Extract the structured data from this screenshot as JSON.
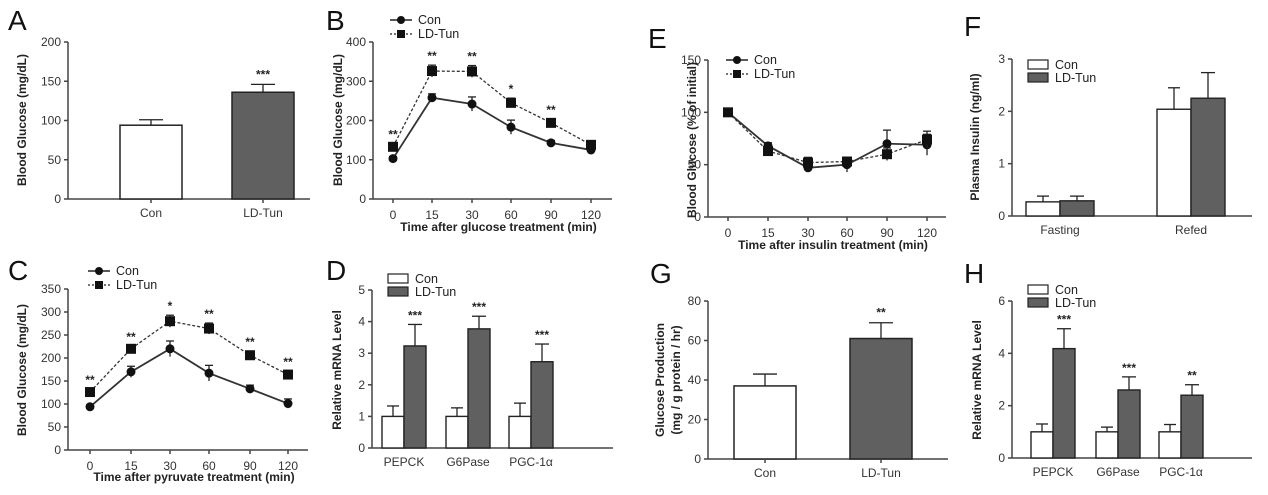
{
  "colors": {
    "con_fill": "#ffffff",
    "ldtun_fill": "#606060",
    "stroke": "#222222",
    "line": "#333333"
  },
  "chart_data": [
    {
      "panel": "A",
      "type": "bar",
      "categories": [
        "Con",
        "LD-Tun"
      ],
      "values": [
        94,
        136
      ],
      "errors": [
        7,
        10
      ],
      "significance": [
        "",
        "***"
      ],
      "ylabel": "Blood Glucose (mg/dL)",
      "xlabel": "",
      "ylim": [
        0,
        200
      ],
      "yticks": [
        0,
        50,
        100,
        150,
        200
      ]
    },
    {
      "panel": "B",
      "type": "line",
      "x": [
        "0",
        "15",
        "30",
        "60",
        "90",
        "120"
      ],
      "series": [
        {
          "name": "Con",
          "marker": "circle",
          "dash": false,
          "values": [
            103,
            258,
            242,
            183,
            143,
            125
          ],
          "errors": [
            5,
            10,
            18,
            18,
            6,
            5
          ]
        },
        {
          "name": "LD-Tun",
          "marker": "square",
          "dash": true,
          "values": [
            133,
            326,
            325,
            245,
            194,
            138
          ],
          "errors": [
            8,
            15,
            15,
            12,
            10,
            6
          ]
        }
      ],
      "significance": [
        "**",
        "**",
        "**",
        "*",
        "**",
        ""
      ],
      "legend": [
        "Con",
        "LD-Tun"
      ],
      "legend_position": "top-left",
      "ylabel": "Blood Glucose (mg/dL)",
      "xlabel": "Time after glucose treatment (min)",
      "ylim": [
        0,
        400
      ],
      "yticks": [
        0,
        100,
        200,
        300,
        400
      ]
    },
    {
      "panel": "C",
      "type": "line",
      "x": [
        "0",
        "15",
        "30",
        "60",
        "90",
        "120"
      ],
      "series": [
        {
          "name": "Con",
          "marker": "circle",
          "dash": false,
          "values": [
            94,
            170,
            220,
            167,
            133,
            101
          ],
          "errors": [
            4,
            12,
            17,
            17,
            8,
            10
          ]
        },
        {
          "name": "LD-Tun",
          "marker": "square",
          "dash": true,
          "values": [
            126,
            220,
            280,
            264,
            206,
            164
          ],
          "errors": [
            7,
            6,
            13,
            12,
            9,
            8
          ]
        }
      ],
      "significance": [
        "**",
        "**",
        "*",
        "**",
        "**",
        "**"
      ],
      "legend": [
        "Con",
        "LD-Tun"
      ],
      "legend_position": "top-left",
      "ylabel": "Blood Glucose (mg/dL)",
      "xlabel": "Time after pyruvate treatment (min)",
      "ylim": [
        0,
        350
      ],
      "yticks": [
        0,
        50,
        100,
        150,
        200,
        250,
        300,
        350
      ]
    },
    {
      "panel": "D",
      "type": "bar",
      "categories": [
        "PEPCK",
        "G6Pase",
        "PGC-1α"
      ],
      "series": [
        {
          "name": "Con",
          "values": [
            1.0,
            1.0,
            1.0
          ],
          "errors": [
            0.33,
            0.27,
            0.42
          ]
        },
        {
          "name": "LD-Tun",
          "values": [
            3.23,
            3.77,
            2.73
          ],
          "errors": [
            0.68,
            0.4,
            0.56
          ]
        }
      ],
      "significance": [
        "***",
        "***",
        "***"
      ],
      "legend": [
        "Con",
        "LD-Tun"
      ],
      "legend_position": "top-left",
      "ylabel": "Relative mRNA Level",
      "xlabel": "",
      "ylim": [
        0,
        5
      ],
      "yticks": [
        0,
        1,
        2,
        3,
        4,
        5
      ]
    },
    {
      "panel": "E",
      "type": "line",
      "x": [
        "0",
        "15",
        "30",
        "60",
        "90",
        "120"
      ],
      "series": [
        {
          "name": "Con",
          "marker": "circle",
          "dash": false,
          "values": [
            100,
            68,
            47,
            50,
            70,
            69
          ],
          "errors": [
            1,
            3,
            4,
            7,
            13,
            10
          ]
        },
        {
          "name": "LD-Tun",
          "marker": "square",
          "dash": true,
          "values": [
            100,
            63,
            52,
            53,
            60,
            74
          ],
          "errors": [
            1,
            3,
            5,
            4,
            6,
            8
          ]
        }
      ],
      "significance": [
        "",
        "",
        "",
        "",
        "",
        ""
      ],
      "legend": [
        "Con",
        "LD-Tun"
      ],
      "legend_position": "top-left",
      "ylabel": "Blood Glucose (% of initial)",
      "xlabel": "Time after insulin treatment (min)",
      "ylim": [
        0,
        150
      ],
      "yticks": [
        0,
        50,
        100,
        150
      ]
    },
    {
      "panel": "F",
      "type": "bar",
      "categories": [
        "Fasting",
        "Refed"
      ],
      "series": [
        {
          "name": "Con",
          "values": [
            0.27,
            2.04
          ],
          "errors": [
            0.11,
            0.41
          ]
        },
        {
          "name": "LD-Tun",
          "values": [
            0.29,
            2.25
          ],
          "errors": [
            0.09,
            0.49
          ]
        }
      ],
      "significance": [
        "",
        ""
      ],
      "legend": [
        "Con",
        "LD-Tun"
      ],
      "legend_position": "top-left",
      "ylabel": "Plasma Insulin (ng/ml)",
      "xlabel": "",
      "ylim": [
        0,
        3
      ],
      "yticks": [
        0,
        1,
        2,
        3
      ]
    },
    {
      "panel": "G",
      "type": "bar",
      "categories": [
        "Con",
        "LD-Tun"
      ],
      "values": [
        37,
        61
      ],
      "errors": [
        6,
        8
      ],
      "significance": [
        "",
        "**"
      ],
      "ylabel": "Glucose Production",
      "ylabel2": "(mg / g protein / hr)",
      "xlabel": "",
      "ylim": [
        0,
        80
      ],
      "yticks": [
        0,
        20,
        40,
        60,
        80
      ]
    },
    {
      "panel": "H",
      "type": "bar",
      "categories": [
        "PEPCK",
        "G6Pase",
        "PGC-1α"
      ],
      "series": [
        {
          "name": "Con",
          "values": [
            1.0,
            1.0,
            1.0
          ],
          "errors": [
            0.3,
            0.18,
            0.28
          ]
        },
        {
          "name": "LD-Tun",
          "values": [
            4.18,
            2.6,
            2.4
          ],
          "errors": [
            0.76,
            0.5,
            0.4
          ]
        }
      ],
      "significance": [
        "***",
        "***",
        "**"
      ],
      "legend": [
        "Con",
        "LD-Tun"
      ],
      "legend_position": "top-left",
      "ylabel": "Relative mRNA Level",
      "xlabel": "",
      "ylim": [
        0,
        6
      ],
      "yticks": [
        0,
        2,
        4,
        6
      ]
    }
  ]
}
